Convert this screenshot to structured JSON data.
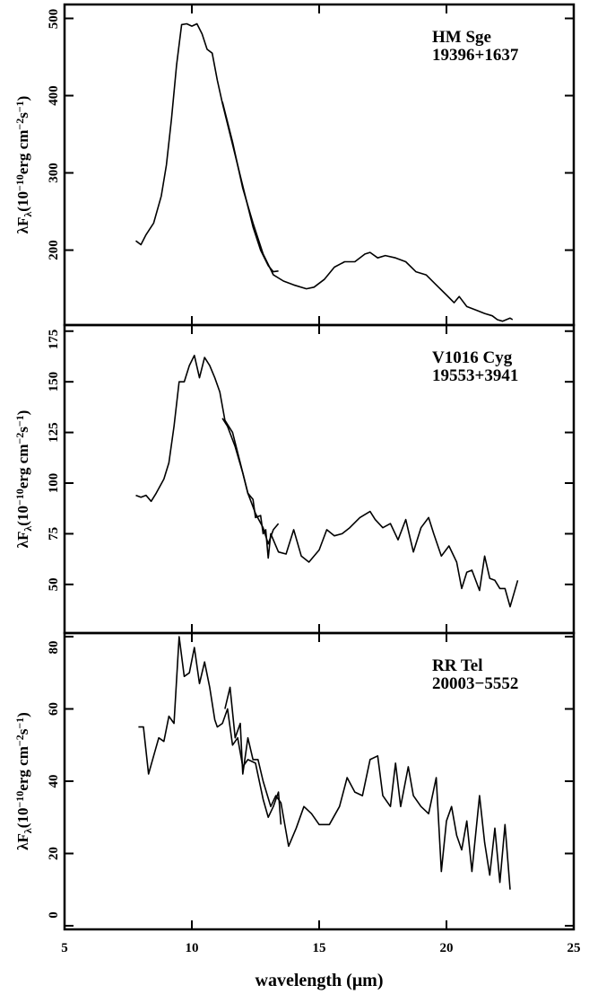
{
  "chart_data": [
    {
      "type": "line",
      "annotations": [
        "HM Sge",
        "19396+1637"
      ],
      "y_label": [
        "λF",
        "λ",
        "(10",
        "−10",
        "erg cm",
        "−2",
        "s",
        "−1",
        ")"
      ],
      "xlim": [
        5,
        25
      ],
      "xticks": [
        5,
        10,
        15,
        20,
        25
      ],
      "ylim": [
        103,
        518
      ],
      "yticks": [
        200,
        300,
        400,
        500
      ],
      "series": [
        {
          "color": "#000000",
          "x": [
            7.8,
            8.0,
            8.2,
            8.5,
            8.8,
            9.0,
            9.2,
            9.4,
            9.6,
            9.8,
            10.0,
            10.2,
            10.4,
            10.6,
            10.8,
            11.0,
            11.2,
            11.5,
            11.8,
            12.1,
            12.4,
            12.7,
            13.0,
            13.2,
            13.4
          ],
          "values": [
            212,
            207,
            220,
            235,
            270,
            310,
            370,
            440,
            492,
            493,
            490,
            493,
            480,
            460,
            455,
            420,
            390,
            350,
            310,
            270,
            230,
            200,
            180,
            172,
            173
          ]
        },
        {
          "color": "#000000",
          "x": [
            11.2,
            11.6,
            12.0,
            12.4,
            12.8,
            13.2,
            13.6,
            14.0,
            14.5,
            14.8,
            15.2,
            15.6,
            16.0,
            16.4,
            16.8,
            17.0,
            17.3,
            17.6,
            18.0,
            18.4,
            18.8,
            19.2,
            19.6,
            20.0,
            20.3,
            20.5,
            20.8,
            21.2,
            21.5,
            21.8,
            22.0,
            22.2,
            22.5,
            22.6
          ],
          "values": [
            392,
            340,
            280,
            235,
            195,
            168,
            160,
            155,
            150,
            152,
            162,
            178,
            185,
            185,
            195,
            197,
            190,
            193,
            190,
            185,
            172,
            168,
            155,
            142,
            132,
            140,
            127,
            122,
            118,
            115,
            110,
            108,
            112,
            110
          ]
        }
      ]
    },
    {
      "type": "line",
      "annotations": [
        "V1016 Cyg",
        "19553+3941"
      ],
      "y_label": [
        "λF",
        "λ",
        "(10",
        "−10",
        "erg cm",
        "−2",
        "s",
        "−1",
        ")"
      ],
      "xlim": [
        5,
        25
      ],
      "xticks": [
        5,
        10,
        15,
        20,
        25
      ],
      "ylim": [
        26,
        178
      ],
      "yticks": [
        50,
        75,
        100,
        125,
        150,
        175
      ],
      "series": [
        {
          "color": "#000000",
          "x": [
            7.8,
            8.0,
            8.2,
            8.4,
            8.6,
            8.9,
            9.1,
            9.3,
            9.5,
            9.7,
            9.9,
            10.1,
            10.3,
            10.5,
            10.7,
            10.9,
            11.1,
            11.3,
            11.6,
            11.9,
            12.2,
            12.5,
            12.8,
            13.0,
            13.2,
            13.4
          ],
          "values": [
            94,
            93,
            94,
            91,
            95,
            102,
            110,
            128,
            150,
            150,
            158,
            163,
            152,
            162,
            158,
            152,
            145,
            131,
            125,
            110,
            95,
            85,
            78,
            70,
            77,
            80
          ]
        },
        {
          "color": "#000000",
          "x": [
            11.2,
            11.4,
            11.7,
            12.0,
            12.2,
            12.4,
            12.5,
            12.7,
            12.8,
            12.9,
            13.0,
            13.1,
            13.4,
            13.7,
            14.0,
            14.3,
            14.6,
            15.0,
            15.3,
            15.6,
            15.9,
            16.2,
            16.6,
            17.0,
            17.2,
            17.5,
            17.8,
            18.1,
            18.4,
            18.7,
            19.0,
            19.3,
            19.5,
            19.8,
            20.1,
            20.4,
            20.6,
            20.8,
            21.0,
            21.3,
            21.5,
            21.7,
            21.9,
            22.1,
            22.3,
            22.5,
            22.8
          ],
          "values": [
            132,
            128,
            118,
            105,
            95,
            92,
            83,
            84,
            75,
            77,
            63,
            75,
            66,
            65,
            77,
            64,
            61,
            67,
            77,
            74,
            75,
            78,
            83,
            86,
            82,
            78,
            80,
            72,
            82,
            66,
            78,
            83,
            75,
            64,
            69,
            61,
            48,
            56,
            57,
            47,
            64,
            53,
            52,
            48,
            48,
            39,
            52
          ]
        }
      ]
    },
    {
      "type": "line",
      "annotations": [
        "RR Tel",
        "20003−5552"
      ],
      "y_label": [
        "λF",
        "λ",
        "(10",
        "−10",
        "erg cm",
        "−2",
        "s",
        "−1",
        ")"
      ],
      "x_label": "wavelength (μm)",
      "xlim": [
        5,
        25
      ],
      "xticks": [
        5,
        10,
        15,
        20,
        25
      ],
      "ylim": [
        -1,
        81
      ],
      "yticks": [
        0,
        20,
        40,
        60,
        80
      ],
      "series": [
        {
          "color": "#000000",
          "x": [
            7.9,
            8.1,
            8.3,
            8.5,
            8.7,
            8.9,
            9.1,
            9.3,
            9.5,
            9.7,
            9.9,
            10.1,
            10.3,
            10.5,
            10.7,
            10.9,
            11.0,
            11.2,
            11.4,
            11.6,
            11.8,
            12.0,
            12.2,
            12.5,
            12.8,
            13.0,
            13.2,
            13.4,
            13.5
          ],
          "values": [
            55,
            55,
            42,
            47,
            52,
            51,
            58,
            56,
            80,
            69,
            70,
            77,
            67,
            73,
            66,
            57,
            55,
            56,
            60,
            50,
            52,
            44,
            46,
            45,
            35,
            30,
            33,
            37,
            28
          ]
        },
        {
          "color": "#000000",
          "x": [
            11.3,
            11.5,
            11.7,
            11.9,
            12.0,
            12.2,
            12.4,
            12.6,
            12.8,
            13.1,
            13.3,
            13.5,
            13.8,
            14.1,
            14.4,
            14.7,
            15.0,
            15.4,
            15.8,
            16.1,
            16.4,
            16.7,
            17.0,
            17.3,
            17.5,
            17.8,
            18.0,
            18.2,
            18.5,
            18.7,
            19.0,
            19.3,
            19.6,
            19.8,
            20.0,
            20.2,
            20.4,
            20.6,
            20.8,
            21.0,
            21.3,
            21.5,
            21.7,
            21.9,
            22.1,
            22.3,
            22.5
          ],
          "values": [
            60,
            66,
            52,
            56,
            42,
            52,
            46,
            46,
            40,
            33,
            36,
            34,
            22,
            27,
            33,
            31,
            28,
            28,
            33,
            41,
            37,
            36,
            46,
            47,
            36,
            33,
            45,
            33,
            44,
            36,
            33,
            31,
            41,
            15,
            29,
            33,
            25,
            21,
            29,
            15,
            36,
            23,
            14,
            27,
            12,
            28,
            10
          ]
        }
      ]
    }
  ]
}
